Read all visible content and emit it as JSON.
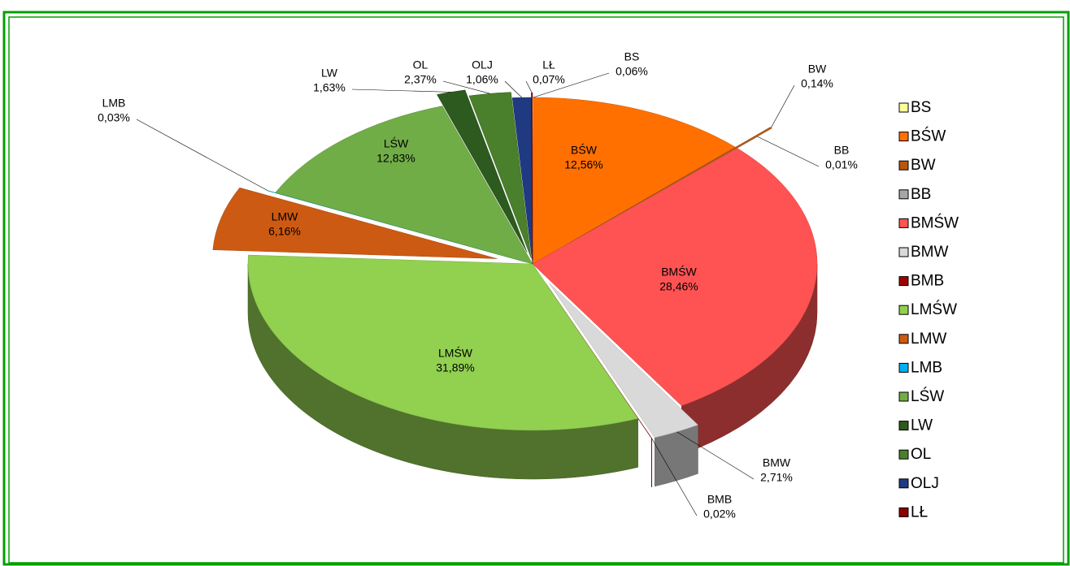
{
  "chart_data": {
    "type": "pie",
    "categories": [
      "BS",
      "BŚW",
      "BW",
      "BB",
      "BMŚW",
      "BMW",
      "BMB",
      "LMŚW",
      "LMW",
      "LMB",
      "LŚW",
      "LW",
      "OL",
      "OLJ",
      "LŁ"
    ],
    "values": [
      0.06,
      12.56,
      0.14,
      0.01,
      28.46,
      2.71,
      0.02,
      31.89,
      6.16,
      0.03,
      12.83,
      1.63,
      2.37,
      1.06,
      0.07
    ],
    "value_labels": [
      "0,06%",
      "12,56%",
      "0,14%",
      "0,01%",
      "28,46%",
      "2,71%",
      "0,02%",
      "31,89%",
      "6,16%",
      "0,03%",
      "12,83%",
      "1,63%",
      "2,37%",
      "1,06%",
      "0,07%"
    ],
    "colors": [
      "#ffff99",
      "#ff7000",
      "#b8560f",
      "#a6a6a6",
      "#ff5353",
      "#d9d9d9",
      "#a00000",
      "#92d050",
      "#cc5a12",
      "#00b0f0",
      "#70ad47",
      "#2d5a1e",
      "#4a7f2c",
      "#1f3a80",
      "#8b0000"
    ],
    "legend": "right"
  }
}
